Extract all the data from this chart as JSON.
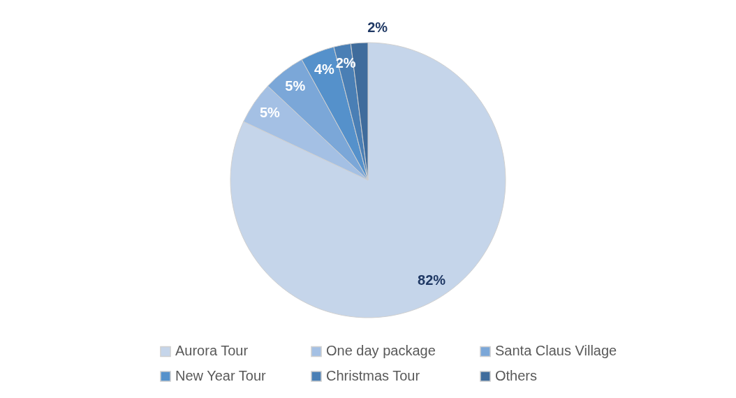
{
  "chart_data": {
    "type": "pie",
    "categories": [
      "Aurora Tour",
      "One day package",
      "Santa Claus Village",
      "New Year Tour",
      "Christmas Tour",
      "Others"
    ],
    "values": [
      82,
      5,
      5,
      4,
      2,
      2
    ],
    "value_labels": [
      "82%",
      "5%",
      "5%",
      "4%",
      "2%",
      "2%"
    ],
    "colors": [
      "#c5d5ea",
      "#a4c0e4",
      "#7ba7d8",
      "#5591cb",
      "#4a7fb5",
      "#3f6c9c"
    ],
    "legend": "bottom"
  }
}
